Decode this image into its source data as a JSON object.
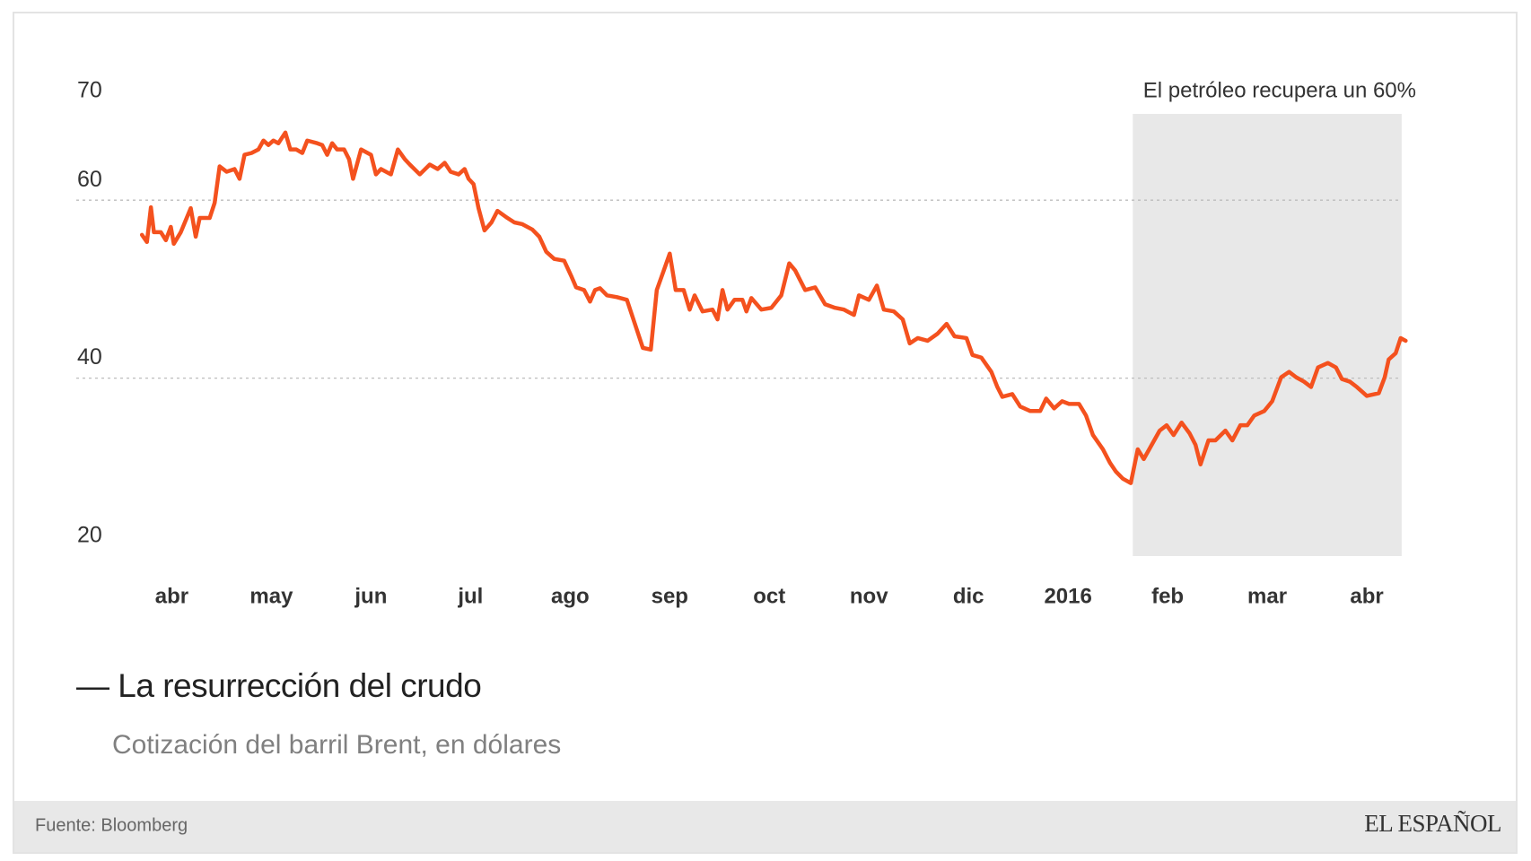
{
  "chart_data": {
    "type": "line",
    "title": "— La resurrección del crudo",
    "subtitle": "Cotización del barril Brent, en dólares",
    "source": "Fuente: Bloomberg",
    "logo": "EL ESPAÑOL",
    "annotation": "El petróleo recupera un 60%",
    "highlight": {
      "x": [
        9.65,
        12.35
      ]
    },
    "color": "#f4511e",
    "grid": true,
    "xlim": [
      -1,
      13
    ],
    "xticks": [
      {
        "value": 0,
        "label": "abr"
      },
      {
        "value": 1,
        "label": "may"
      },
      {
        "value": 2,
        "label": "jun"
      },
      {
        "value": 3,
        "label": "jul"
      },
      {
        "value": 4,
        "label": "ago"
      },
      {
        "value": 5,
        "label": "sep"
      },
      {
        "value": 6,
        "label": "oct"
      },
      {
        "value": 7,
        "label": "nov"
      },
      {
        "value": 8,
        "label": "dic"
      },
      {
        "value": 9,
        "label": "2016"
      },
      {
        "value": 10,
        "label": "feb"
      },
      {
        "value": 11,
        "label": "mar"
      },
      {
        "value": 12,
        "label": "abr"
      }
    ],
    "ylim": [
      20,
      70
    ],
    "yticks": [
      20,
      40,
      60,
      70
    ],
    "x": [
      -0.3,
      -0.25,
      -0.21,
      -0.18,
      -0.11,
      -0.06,
      -0.01,
      0.02,
      0.09,
      0.19,
      0.24,
      0.28,
      0.38,
      0.43,
      0.48,
      0.55,
      0.63,
      0.68,
      0.73,
      0.8,
      0.87,
      0.92,
      0.97,
      1.02,
      1.07,
      1.14,
      1.19,
      1.25,
      1.31,
      1.36,
      1.46,
      1.51,
      1.56,
      1.61,
      1.66,
      1.73,
      1.78,
      1.82,
      1.9,
      2.0,
      2.05,
      2.1,
      2.2,
      2.27,
      2.34,
      2.39,
      2.49,
      2.59,
      2.67,
      2.74,
      2.8,
      2.88,
      2.94,
      2.98,
      3.03,
      3.08,
      3.14,
      3.21,
      3.27,
      3.37,
      3.44,
      3.52,
      3.62,
      3.69,
      3.76,
      3.84,
      3.94,
      4.01,
      4.06,
      4.14,
      4.2,
      4.25,
      4.3,
      4.37,
      4.47,
      4.57,
      4.65,
      4.73,
      4.81,
      4.87,
      4.94,
      5.0,
      5.06,
      5.14,
      5.2,
      5.25,
      5.33,
      5.43,
      5.48,
      5.53,
      5.58,
      5.65,
      5.73,
      5.77,
      5.82,
      5.92,
      6.02,
      6.12,
      6.2,
      6.26,
      6.36,
      6.46,
      6.56,
      6.66,
      6.75,
      6.85,
      6.9,
      7.0,
      7.08,
      7.15,
      7.25,
      7.34,
      7.41,
      7.49,
      7.59,
      7.69,
      7.78,
      7.86,
      7.98,
      8.04,
      8.13,
      8.23,
      8.29,
      8.34,
      8.44,
      8.52,
      8.62,
      8.72,
      8.78,
      8.86,
      8.94,
      9.01,
      9.11,
      9.18,
      9.25,
      9.35,
      9.42,
      9.48,
      9.55,
      9.63,
      9.7,
      9.76,
      9.84,
      9.92,
      9.99,
      10.06,
      10.14,
      10.22,
      10.28,
      10.33,
      10.41,
      10.48,
      10.58,
      10.65,
      10.73,
      10.8,
      10.87,
      10.97,
      11.05,
      11.14,
      11.22,
      11.29,
      11.37,
      11.44,
      11.51,
      11.61,
      11.69,
      11.75,
      11.83,
      11.9,
      11.95,
      12.0,
      12.12,
      12.18,
      12.22,
      12.29,
      12.34,
      12.39
    ],
    "values": [
      56.1,
      55.3,
      59.2,
      56.4,
      56.4,
      55.5,
      57.0,
      55.1,
      56.4,
      59.1,
      55.9,
      58.0,
      58.0,
      59.7,
      63.8,
      63.2,
      63.5,
      62.4,
      65.1,
      65.3,
      65.7,
      66.7,
      66.2,
      66.7,
      66.4,
      67.6,
      65.7,
      65.7,
      65.3,
      66.7,
      66.4,
      66.2,
      65.1,
      66.4,
      65.7,
      65.7,
      64.6,
      62.4,
      65.7,
      65.1,
      62.9,
      63.5,
      62.9,
      65.7,
      64.6,
      64.0,
      62.9,
      64.0,
      63.5,
      64.2,
      63.2,
      62.9,
      63.5,
      62.4,
      61.8,
      59.1,
      56.6,
      57.5,
      58.8,
      58.0,
      57.5,
      57.3,
      56.7,
      55.9,
      54.2,
      53.4,
      53.2,
      51.5,
      50.2,
      49.9,
      48.6,
      49.9,
      50.1,
      49.3,
      49.1,
      48.8,
      46.1,
      43.4,
      43.2,
      49.9,
      52.1,
      54.0,
      49.9,
      49.9,
      47.7,
      49.3,
      47.5,
      47.7,
      46.6,
      49.9,
      47.7,
      48.8,
      48.8,
      47.5,
      49.0,
      47.7,
      47.9,
      49.3,
      52.9,
      52.1,
      49.9,
      50.2,
      48.3,
      47.9,
      47.7,
      47.1,
      49.3,
      48.8,
      50.4,
      47.7,
      47.5,
      46.6,
      43.9,
      44.5,
      44.2,
      45.0,
      46.1,
      44.7,
      44.5,
      42.6,
      42.3,
      40.7,
      39.0,
      37.9,
      38.2,
      36.8,
      36.3,
      36.3,
      37.7,
      36.6,
      37.4,
      37.1,
      37.1,
      35.8,
      33.6,
      32.0,
      30.5,
      29.5,
      28.7,
      28.2,
      32.0,
      30.9,
      32.5,
      34.1,
      34.7,
      33.6,
      35.0,
      33.8,
      32.5,
      30.3,
      33.0,
      33.0,
      34.1,
      33.0,
      34.7,
      34.7,
      35.8,
      36.3,
      37.4,
      40.1,
      40.7,
      40.1,
      39.6,
      39.0,
      41.2,
      41.7,
      41.2,
      39.9,
      39.6,
      39.0,
      38.5,
      38.0,
      38.3,
      40.1,
      42.1,
      42.8,
      44.5,
      44.2
    ]
  }
}
